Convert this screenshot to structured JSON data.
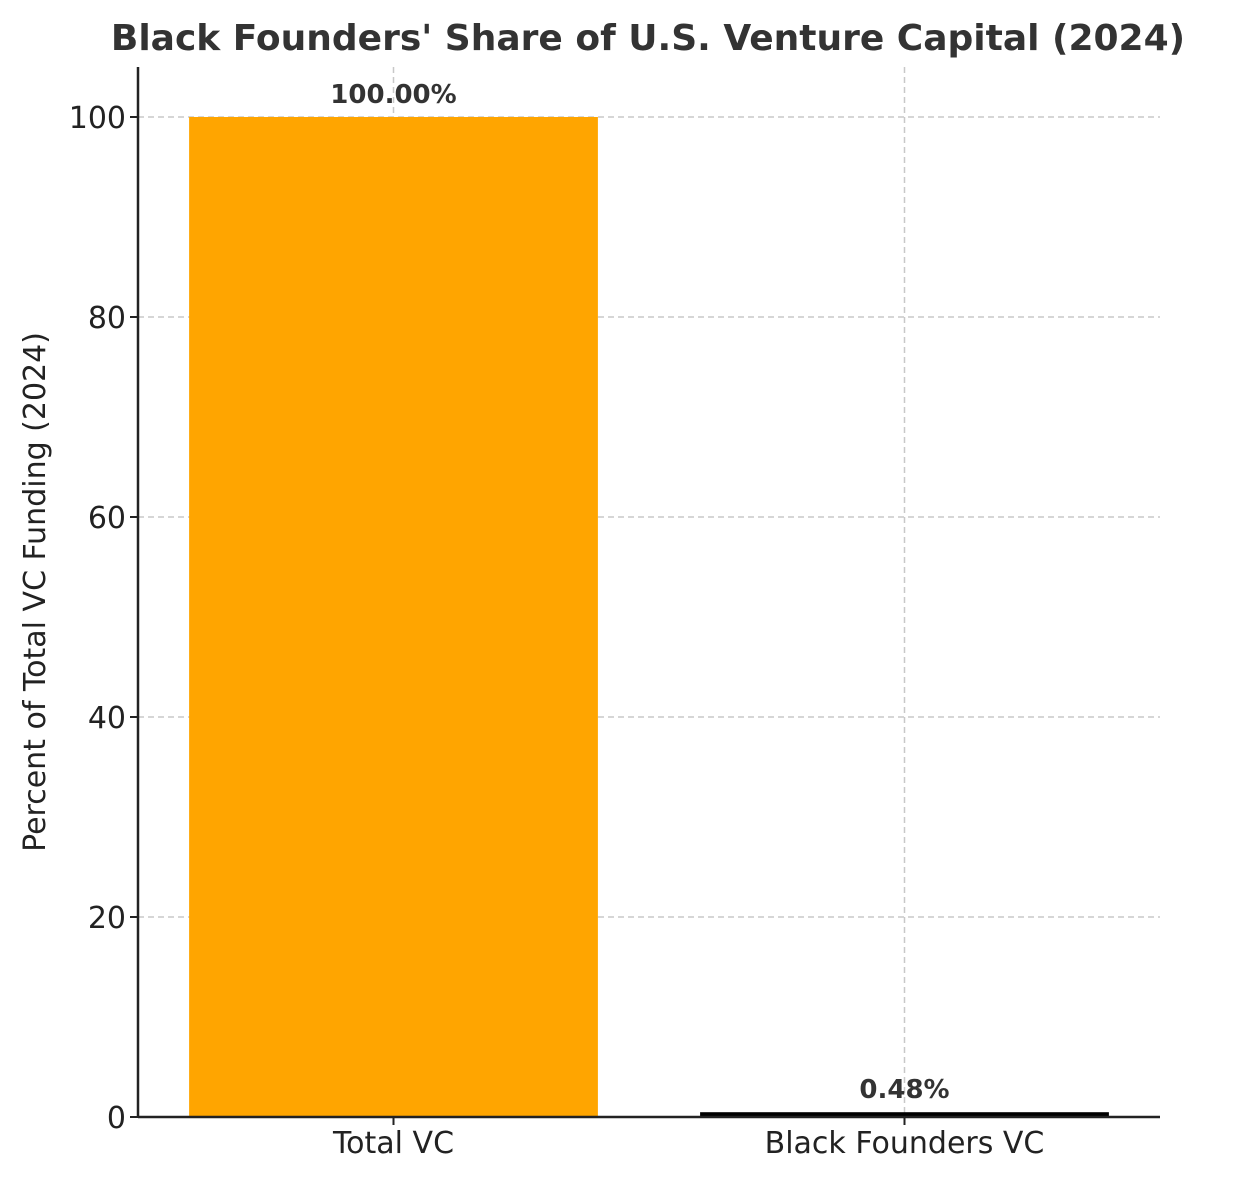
{
  "chart_data": {
    "type": "bar",
    "title": "Black Founders' Share of U.S. Venture Capital (2024)",
    "xlabel": "",
    "ylabel": "Percent of Total VC Funding (2024)",
    "categories": [
      "Total VC",
      "Black Founders VC"
    ],
    "values": [
      100.0,
      0.48
    ],
    "data_labels": [
      "100.00%",
      "0.48%"
    ],
    "bar_colors": [
      "#FFA500",
      "#000000"
    ],
    "ylim": [
      0,
      105
    ],
    "yticks": [
      0,
      20,
      40,
      60,
      80,
      100
    ],
    "grid": true,
    "legend": "none"
  }
}
